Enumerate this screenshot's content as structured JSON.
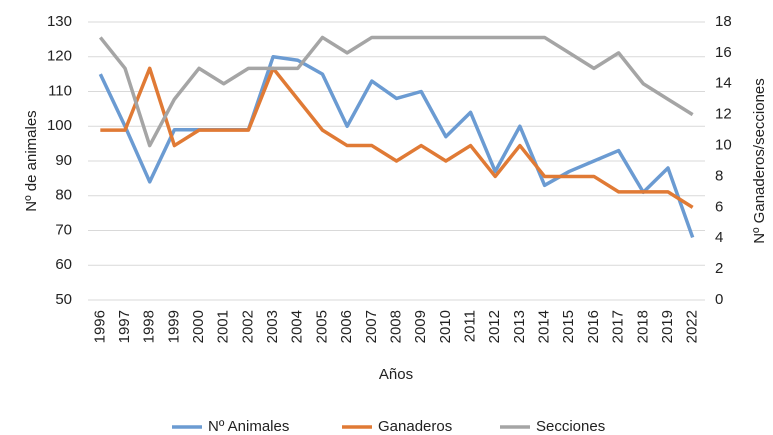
{
  "chart_data": {
    "type": "line",
    "x_label": "Años",
    "y_label": "Nº de animales",
    "y2_label": "Nº Ganaderos/secciones",
    "categories": [
      "1996",
      "1997",
      "1998",
      "1999",
      "2000",
      "2001",
      "2002",
      "2003",
      "2004",
      "2005",
      "2006",
      "2007",
      "2008",
      "2009",
      "2010",
      "2011",
      "2012",
      "2013",
      "2014",
      "2015",
      "2016",
      "2017",
      "2018",
      "2019",
      "2022"
    ],
    "ylim": [
      50,
      130
    ],
    "yticks": [
      50,
      60,
      70,
      80,
      90,
      100,
      110,
      120,
      130
    ],
    "y2lim": [
      0,
      18
    ],
    "y2ticks": [
      0,
      2,
      4,
      6,
      8,
      10,
      12,
      14,
      16,
      18
    ],
    "grid": true,
    "series": [
      {
        "name": "Nº Animales",
        "color": "#6b9bd2",
        "values": [
          115,
          100,
          84,
          99,
          99,
          99,
          99,
          120,
          119,
          115,
          100,
          113,
          108,
          110,
          97,
          104,
          87,
          100,
          83,
          87,
          90,
          93,
          81,
          88,
          68
        ]
      },
      {
        "name": "Ganaderos",
        "color": "#e07a35",
        "axis": "y2",
        "values": [
          11,
          11,
          15,
          10,
          11,
          11,
          11,
          15,
          13,
          11,
          10,
          10,
          9,
          10,
          9,
          10,
          8,
          10,
          8,
          8,
          8,
          7,
          7,
          7,
          6
        ]
      },
      {
        "name": "Secciones",
        "color": "#a5a5a5",
        "axis": "y2",
        "values": [
          17,
          15,
          10,
          13,
          15,
          14,
          15,
          15,
          15,
          17,
          16,
          17,
          17,
          17,
          17,
          17,
          17,
          17,
          17,
          16,
          15,
          16,
          14,
          13,
          12
        ]
      }
    ]
  }
}
